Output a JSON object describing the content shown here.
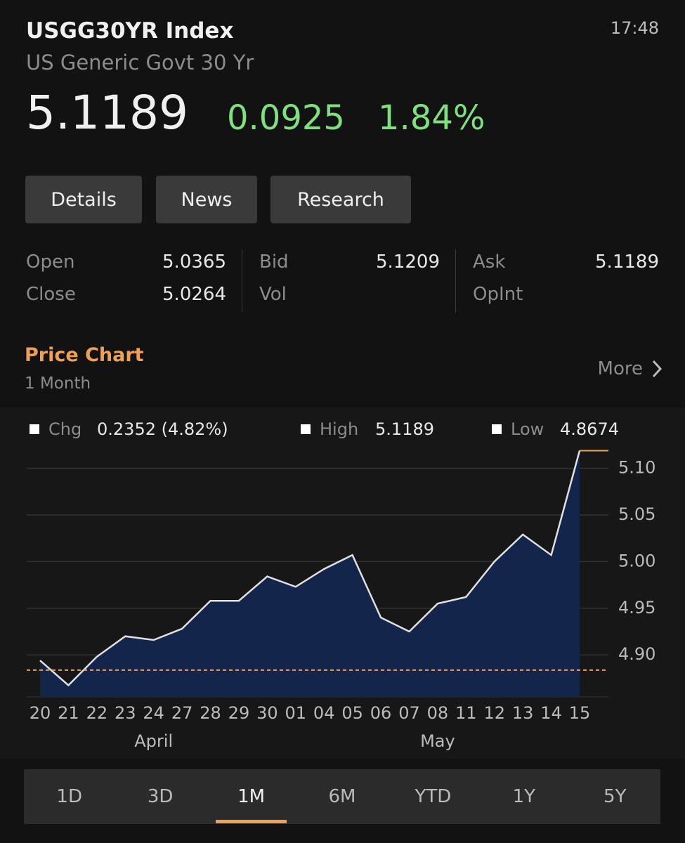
{
  "header": {
    "title": "USGG30YR Index",
    "subtitle": "US Generic Govt 30 Yr",
    "time": "17:48",
    "price": "5.1189",
    "change": "0.0925",
    "change_pct": "1.84%"
  },
  "tabs": [
    "Details",
    "News",
    "Research"
  ],
  "quote": [
    [
      {
        "label": "Open",
        "value": "5.0365"
      },
      {
        "label": "Close",
        "value": "5.0264"
      }
    ],
    [
      {
        "label": "Bid",
        "value": "5.1209"
      },
      {
        "label": "Vol"
      }
    ],
    [
      {
        "label": "Ask",
        "value": "5.1189"
      },
      {
        "label": "OpInt"
      }
    ]
  ],
  "section": {
    "title": "Price Chart",
    "subtitle": "1 Month",
    "more": "More"
  },
  "chart_data": {
    "type": "line",
    "legend": [
      {
        "name": "Chg",
        "value": "0.2352 (4.82%)"
      },
      {
        "name": "High",
        "value": "5.1189"
      },
      {
        "name": "Low",
        "value": "4.8674"
      }
    ],
    "categories": [
      "20",
      "21",
      "22",
      "23",
      "24",
      "27",
      "28",
      "29",
      "30",
      "01",
      "04",
      "05",
      "06",
      "07",
      "08",
      "11",
      "12",
      "13",
      "14",
      "15"
    ],
    "month_labels": [
      null,
      null,
      null,
      null,
      "April",
      null,
      null,
      null,
      null,
      null,
      null,
      null,
      null,
      null,
      "May",
      null,
      null,
      null,
      null,
      null
    ],
    "values": [
      4.894,
      4.8674,
      4.898,
      4.92,
      4.916,
      4.928,
      4.958,
      4.958,
      4.984,
      4.973,
      4.992,
      5.007,
      4.94,
      4.925,
      4.955,
      4.962,
      5.0,
      5.029,
      5.007,
      5.1189
    ],
    "baseline": 4.8837,
    "ylim": [
      4.855,
      5.12
    ],
    "yticks": [
      {
        "value": 4.9,
        "label": "4.90"
      },
      4.95,
      {
        "value": 5.0,
        "label": "5.00"
      },
      5.05,
      {
        "value": 5.1,
        "label": "5.10"
      }
    ],
    "grid": true,
    "color": "#e0e0e0",
    "fill": "#13254a",
    "baseline_color": "#f0a050"
  },
  "periods": [
    "1D",
    "3D",
    "1M",
    "6M",
    "YTD",
    "1Y",
    "5Y"
  ],
  "selected_period": 2
}
